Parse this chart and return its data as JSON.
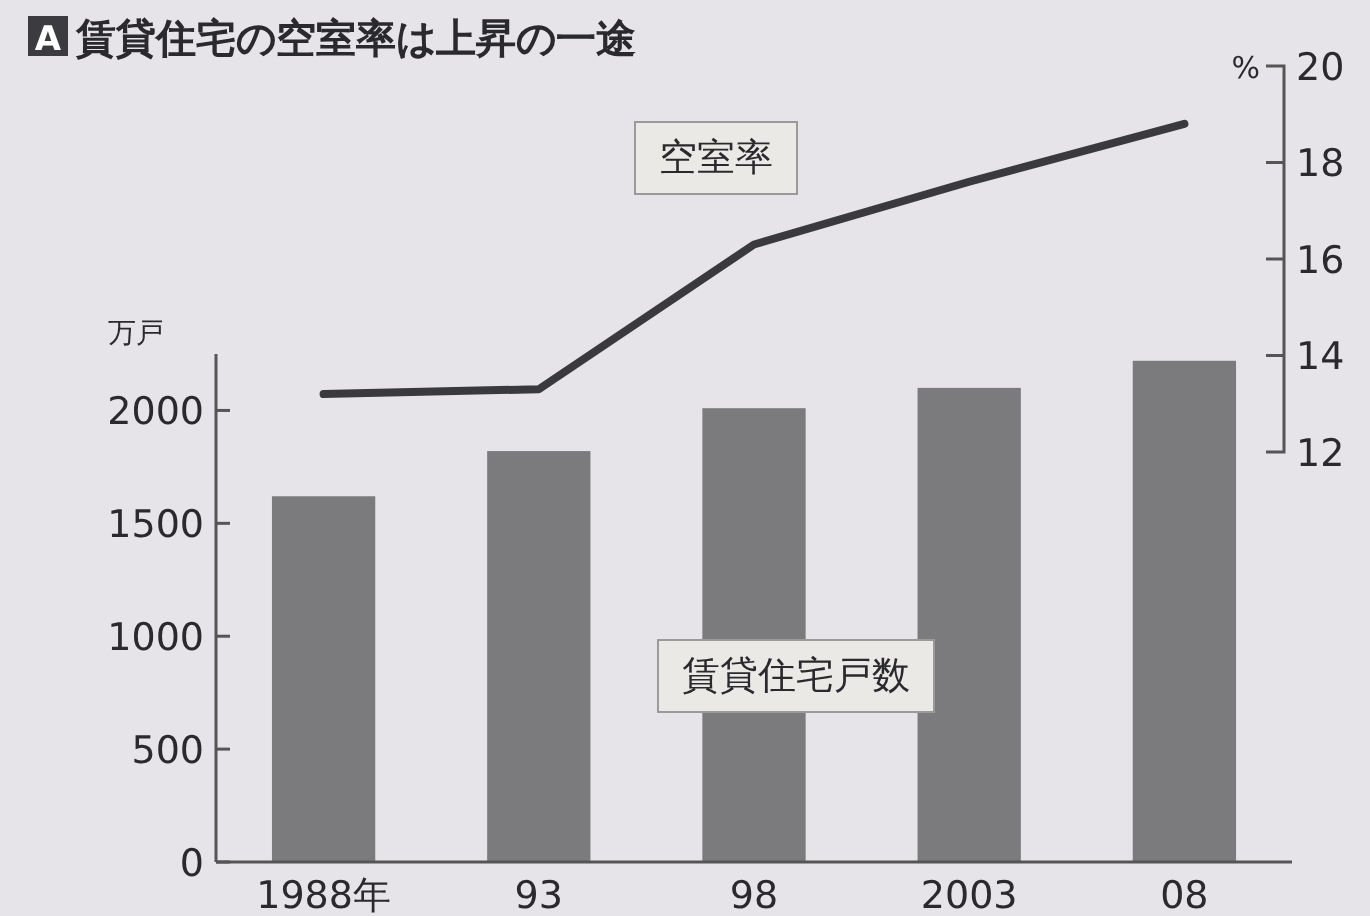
{
  "chart_data": {
    "type": "bar",
    "title": "賃貸住宅の空室率は上昇の一途",
    "annotations": [
      "A"
    ],
    "ylabel": "万戸",
    "y2label": "%",
    "categories": [
      "1988年",
      "93",
      "98",
      "2003",
      "08"
    ],
    "series": [
      {
        "name": "賃貸住宅戸数",
        "color": "#7b7b7d",
        "values": [
          1620,
          1820,
          2010,
          2100,
          2220
        ]
      },
      {
        "name": "空室率",
        "type": "line",
        "axis": "y2",
        "color": "#3a3a3e",
        "values": [
          13.2,
          13.3,
          16.3,
          17.6,
          18.8
        ]
      }
    ],
    "ylim": [
      0,
      2250
    ],
    "yticks": [
      0,
      500,
      1000,
      1500,
      2000
    ],
    "y2lim": [
      3.5,
      20
    ],
    "y2ticks": [
      12,
      14,
      16,
      18,
      20
    ],
    "legend": false,
    "grid": false,
    "marker": "none"
  }
}
